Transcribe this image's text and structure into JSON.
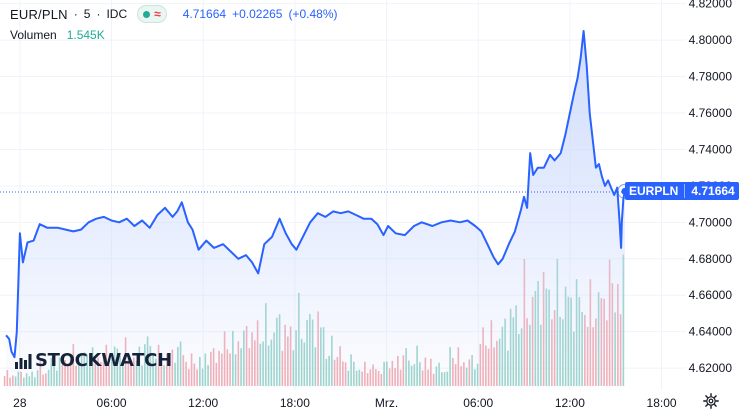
{
  "legend": {
    "symbol": "EUR/PLN",
    "interval": "5",
    "source": "IDC",
    "sep": "·",
    "last": "4.71664",
    "change": "+0.02265",
    "change_pct": "(+0.48%)",
    "volume_label": "Volumen",
    "volume_value": "1.545K",
    "status_icons": [
      "market-open-dot-icon",
      "data-delay-wave-icon"
    ]
  },
  "price_tag": {
    "symbol": "EURPLN",
    "value": "4.71664"
  },
  "watermark": {
    "text": "STOCKWATCH"
  },
  "settings_icon": "gear-icon",
  "colors": {
    "line": "#2962ff",
    "area_top": "#c7d6fb",
    "volume_up": "#8fcfc3",
    "volume_down": "#f2a3aa",
    "last_price_line": "#2962ff",
    "tag_bg": "#2962ff",
    "grid": "#f0f3fa",
    "axis_text": "#131722"
  },
  "chart_data": {
    "type": "area",
    "title": "EUR/PLN · 5 · IDC",
    "x_axis_ticks": [
      "28",
      "06:00",
      "12:00",
      "18:00",
      "Mrz.",
      "06:00",
      "12:00",
      "18:00"
    ],
    "y_axis_ticks": [
      "4.82000",
      "4.80000",
      "4.78000",
      "4.76000",
      "4.74000",
      "4.72000",
      "4.70000",
      "4.68000",
      "4.66000",
      "4.64000",
      "4.62000"
    ],
    "ylim": [
      4.608,
      4.822
    ],
    "x_unit": "hours since 28 00:00",
    "xlim": [
      -1.3,
      43.6
    ],
    "grid": true,
    "last_price": 4.71664,
    "series": [
      {
        "name": "EURPLN",
        "points": [
          [
            -0.9,
            4.638
          ],
          [
            -0.7,
            4.636
          ],
          [
            -0.55,
            4.629
          ],
          [
            -0.35,
            4.626
          ],
          [
            -0.2,
            4.64
          ],
          [
            0.0,
            4.694
          ],
          [
            0.2,
            4.678
          ],
          [
            0.5,
            4.689
          ],
          [
            0.9,
            4.69
          ],
          [
            1.3,
            4.699
          ],
          [
            1.8,
            4.697
          ],
          [
            2.5,
            4.697
          ],
          [
            3.0,
            4.696
          ],
          [
            3.5,
            4.695
          ],
          [
            4.0,
            4.696
          ],
          [
            4.5,
            4.7
          ],
          [
            5.0,
            4.702
          ],
          [
            5.5,
            4.703
          ],
          [
            6.0,
            4.701
          ],
          [
            6.5,
            4.7
          ],
          [
            7.0,
            4.702
          ],
          [
            7.5,
            4.698
          ],
          [
            8.0,
            4.701
          ],
          [
            8.5,
            4.697
          ],
          [
            9.0,
            4.704
          ],
          [
            9.5,
            4.708
          ],
          [
            10.0,
            4.703
          ],
          [
            10.3,
            4.706
          ],
          [
            10.6,
            4.711
          ],
          [
            11.0,
            4.7
          ],
          [
            11.3,
            4.696
          ],
          [
            11.7,
            4.685
          ],
          [
            12.2,
            4.69
          ],
          [
            12.7,
            4.686
          ],
          [
            13.3,
            4.688
          ],
          [
            13.8,
            4.684
          ],
          [
            14.3,
            4.68
          ],
          [
            14.8,
            4.682
          ],
          [
            15.2,
            4.678
          ],
          [
            15.6,
            4.672
          ],
          [
            16.0,
            4.688
          ],
          [
            16.5,
            4.692
          ],
          [
            17.0,
            4.702
          ],
          [
            17.4,
            4.694
          ],
          [
            17.8,
            4.688
          ],
          [
            18.1,
            4.685
          ],
          [
            18.4,
            4.69
          ],
          [
            19.0,
            4.7
          ],
          [
            19.5,
            4.705
          ],
          [
            20.0,
            4.703
          ],
          [
            20.5,
            4.706
          ],
          [
            21.0,
            4.705
          ],
          [
            21.5,
            4.706
          ],
          [
            22.0,
            4.704
          ],
          [
            22.5,
            4.702
          ],
          [
            23.0,
            4.702
          ],
          [
            23.4,
            4.699
          ],
          [
            23.8,
            4.693
          ],
          [
            24.1,
            4.698
          ],
          [
            24.6,
            4.694
          ],
          [
            25.2,
            4.693
          ],
          [
            25.8,
            4.698
          ],
          [
            26.3,
            4.7
          ],
          [
            27.0,
            4.698
          ],
          [
            27.6,
            4.7
          ],
          [
            28.2,
            4.701
          ],
          [
            28.8,
            4.7
          ],
          [
            29.3,
            4.701
          ],
          [
            29.8,
            4.698
          ],
          [
            30.2,
            4.695
          ],
          [
            30.6,
            4.688
          ],
          [
            31.0,
            4.681
          ],
          [
            31.3,
            4.677
          ],
          [
            31.6,
            4.68
          ],
          [
            32.0,
            4.688
          ],
          [
            32.4,
            4.695
          ],
          [
            32.8,
            4.707
          ],
          [
            33.0,
            4.714
          ],
          [
            33.2,
            4.708
          ],
          [
            33.4,
            4.738
          ],
          [
            33.6,
            4.726
          ],
          [
            33.9,
            4.73
          ],
          [
            34.3,
            4.73
          ],
          [
            34.7,
            4.737
          ],
          [
            35.0,
            4.734
          ],
          [
            35.4,
            4.738
          ],
          [
            35.7,
            4.748
          ],
          [
            36.0,
            4.76
          ],
          [
            36.3,
            4.772
          ],
          [
            36.5,
            4.779
          ],
          [
            36.7,
            4.79
          ],
          [
            36.9,
            4.805
          ],
          [
            37.1,
            4.786
          ],
          [
            37.3,
            4.76
          ],
          [
            37.5,
            4.745
          ],
          [
            37.7,
            4.73
          ],
          [
            37.9,
            4.732
          ],
          [
            38.1,
            4.725
          ],
          [
            38.3,
            4.72
          ],
          [
            38.5,
            4.723
          ],
          [
            38.7,
            4.719
          ],
          [
            38.9,
            4.715
          ],
          [
            39.1,
            4.719
          ],
          [
            39.25,
            4.701
          ],
          [
            39.35,
            4.686
          ],
          [
            39.4,
            4.7
          ],
          [
            39.5,
            4.713
          ],
          [
            39.6,
            4.717
          ]
        ]
      }
    ],
    "volume": {
      "name": "Volumen",
      "bars_by_hour": [
        0.02,
        0.03,
        0.04,
        0.05,
        0.05,
        0.05,
        0.06,
        0.05,
        0.07,
        0.05,
        0.06,
        0.04,
        0.05,
        0.07,
        0.08,
        0.09,
        0.1,
        0.09,
        0.11,
        0.1,
        0.06,
        0.04,
        0.03,
        0.03,
        0.04,
        0.05,
        0.04,
        0.03,
        0.05,
        0.04,
        0.08,
        0.09,
        0.12,
        0.15,
        0.16,
        0.15,
        0.14,
        0.13,
        0.16,
        0.17,
        0.14,
        0.13
      ]
    }
  }
}
